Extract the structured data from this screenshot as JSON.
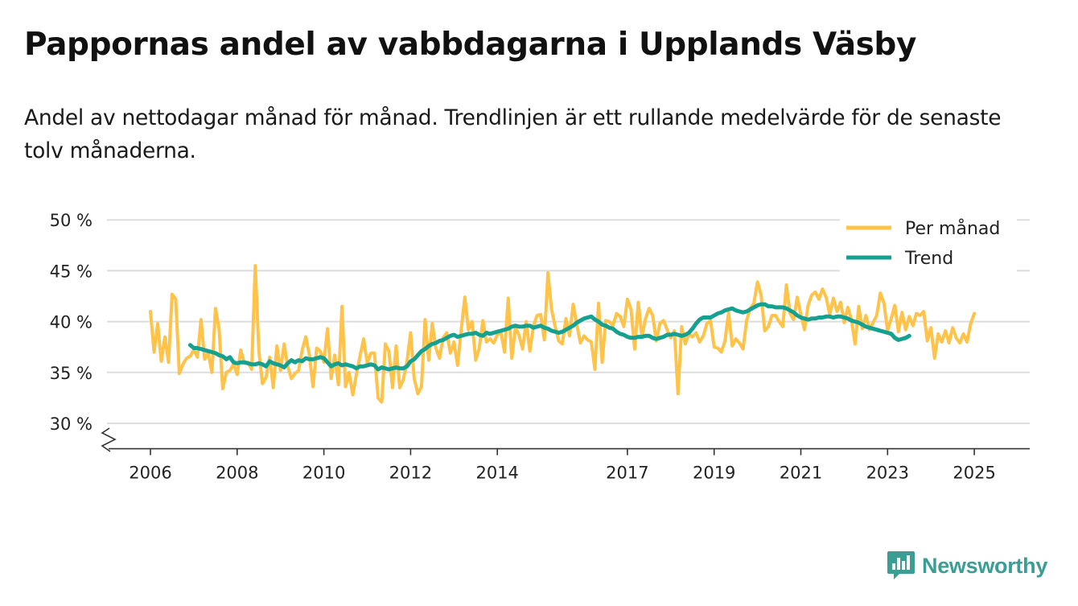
{
  "title": "Pappornas andel av vabbdagarna i Upplands Väsby",
  "subtitle": "Andel av nettodagar månad för månad. Trendlinjen är ett rullande medelvärde för de senaste tolv månaderna.",
  "brand": {
    "name": "Newsworthy",
    "icon": "bar-chart-speech-bubble-icon"
  },
  "colors": {
    "monthly": "#FFC34A",
    "trend": "#16A090",
    "grid": "#dddddd",
    "axis": "#333333",
    "brand": "#3a9e95"
  },
  "chart_data": {
    "type": "line",
    "title": "Pappornas andel av vabbdagarna i Upplands Väsby",
    "xlabel": "",
    "ylabel": "",
    "xlim": [
      2006.0,
      2026.5
    ],
    "ylim": [
      27.5,
      50
    ],
    "y_ticks": [
      30,
      35,
      40,
      45,
      50
    ],
    "y_tick_labels": [
      "30 %",
      "35 %",
      "40 %",
      "45 %",
      "50 %"
    ],
    "x_ticks": [
      2006,
      2008,
      2010,
      2012,
      2014,
      2017,
      2019,
      2021,
      2023,
      2025
    ],
    "x_tick_labels": [
      "2006",
      "2008",
      "2010",
      "2012",
      "2014",
      "2017",
      "2019",
      "2021",
      "2023",
      "2025"
    ],
    "grid": true,
    "axis_break": true,
    "legend_position": "top-right",
    "series": [
      {
        "name": "Per månad",
        "start": "2006-01",
        "values": [
          41.0,
          37.0,
          39.8,
          36.1,
          38.5,
          36.0,
          42.7,
          42.2,
          34.9,
          35.8,
          36.4,
          36.6,
          37.2,
          36.5,
          40.2,
          36.3,
          36.9,
          35.0,
          41.3,
          39.3,
          33.4,
          35.0,
          35.2,
          35.8,
          34.8,
          37.2,
          35.9,
          36.0,
          35.3,
          45.5,
          37.1,
          33.9,
          34.5,
          36.5,
          33.5,
          37.6,
          35.2,
          37.8,
          35.6,
          34.4,
          34.9,
          35.2,
          37.2,
          38.5,
          36.7,
          33.6,
          37.4,
          37.1,
          36.0,
          39.3,
          34.4,
          36.7,
          33.8,
          41.5,
          33.6,
          35.0,
          32.8,
          34.8,
          36.6,
          38.3,
          35.9,
          36.9,
          36.9,
          32.5,
          32.1,
          37.8,
          37.1,
          33.5,
          37.6,
          33.5,
          34.3,
          36.1,
          38.9,
          34.4,
          32.9,
          33.6,
          40.2,
          36.2,
          39.8,
          37.4,
          36.4,
          38.4,
          38.9,
          36.9,
          38.0,
          35.7,
          39.2,
          42.4,
          39.2,
          40.0,
          36.2,
          37.4,
          40.1,
          38.0,
          38.3,
          37.9,
          38.7,
          38.9,
          37.0,
          42.3,
          36.4,
          39.4,
          38.7,
          37.3,
          40.0,
          37.1,
          39.6,
          40.6,
          40.7,
          38.2,
          44.8,
          41.2,
          39.5,
          38.1,
          37.8,
          40.3,
          38.6,
          41.7,
          39.7,
          37.9,
          38.6,
          38.2,
          38.0,
          35.3,
          41.8,
          36.0,
          40.1,
          40.0,
          39.6,
          40.8,
          40.5,
          39.5,
          42.2,
          41.2,
          37.3,
          41.9,
          38.5,
          40.3,
          41.3,
          40.6,
          38.1,
          39.8,
          40.1,
          39.2,
          38.4,
          39.1,
          32.9,
          39.5,
          37.8,
          38.8,
          38.5,
          38.9,
          38.0,
          38.6,
          39.8,
          40.1,
          37.5,
          37.4,
          37.0,
          38.1,
          40.9,
          37.6,
          38.3,
          37.9,
          37.3,
          40.1,
          41.3,
          41.8,
          43.9,
          42.6,
          39.1,
          39.5,
          40.6,
          40.6,
          40.0,
          39.5,
          43.6,
          40.8,
          40.2,
          42.4,
          40.7,
          39.2,
          41.6,
          42.6,
          42.9,
          42.2,
          43.2,
          42.4,
          40.7,
          42.3,
          41.0,
          41.9,
          39.9,
          41.4,
          40.2,
          37.8,
          41.5,
          39.3,
          40.6,
          39.2,
          39.9,
          40.6,
          42.8,
          41.8,
          39.1,
          40.3,
          41.6,
          39.0,
          40.9,
          39.2,
          40.5,
          39.6,
          40.8,
          40.6,
          41.0,
          38.1,
          39.4,
          36.4,
          38.8,
          38.0,
          39.1,
          37.9,
          39.4,
          38.4,
          37.9,
          38.8,
          38.0,
          39.8,
          40.8
        ]
      },
      {
        "name": "Trend",
        "start": "2006-12",
        "values": [
          37.7,
          37.4,
          37.4,
          37.3,
          37.2,
          37.1,
          37.0,
          36.9,
          36.7,
          36.6,
          36.3,
          36.5,
          36.0,
          35.9,
          36.0,
          36.0,
          35.9,
          35.8,
          35.8,
          35.9,
          35.8,
          35.6,
          36.1,
          35.9,
          35.8,
          35.7,
          35.5,
          35.9,
          36.2,
          36.0,
          36.2,
          36.1,
          36.4,
          36.3,
          36.3,
          36.4,
          36.5,
          36.4,
          36.0,
          35.6,
          35.8,
          35.9,
          35.7,
          35.8,
          35.7,
          35.6,
          35.4,
          35.6,
          35.6,
          35.7,
          35.8,
          35.7,
          35.3,
          35.5,
          35.4,
          35.3,
          35.4,
          35.5,
          35.4,
          35.4,
          35.6,
          36.1,
          36.3,
          36.7,
          37.1,
          37.3,
          37.6,
          37.8,
          37.9,
          38.1,
          38.2,
          38.4,
          38.6,
          38.7,
          38.5,
          38.6,
          38.7,
          38.8,
          38.8,
          38.9,
          38.7,
          38.6,
          38.9,
          38.8,
          38.9,
          39.0,
          39.1,
          39.2,
          39.3,
          39.5,
          39.6,
          39.5,
          39.5,
          39.6,
          39.6,
          39.4,
          39.5,
          39.6,
          39.4,
          39.3,
          39.1,
          39.0,
          38.9,
          39.0,
          39.2,
          39.4,
          39.6,
          39.9,
          40.1,
          40.3,
          40.4,
          40.5,
          40.2,
          40.0,
          39.7,
          39.6,
          39.4,
          39.3,
          39.0,
          38.8,
          38.7,
          38.5,
          38.4,
          38.4,
          38.5,
          38.5,
          38.6,
          38.6,
          38.4,
          38.3,
          38.4,
          38.5,
          38.7,
          38.7,
          38.8,
          38.7,
          38.6,
          38.7,
          38.9,
          39.3,
          39.8,
          40.2,
          40.4,
          40.4,
          40.4,
          40.6,
          40.8,
          40.9,
          41.1,
          41.2,
          41.3,
          41.1,
          41.0,
          40.9,
          41.0,
          41.2,
          41.4,
          41.6,
          41.7,
          41.7,
          41.5,
          41.5,
          41.4,
          41.4,
          41.4,
          41.3,
          41.1,
          40.9,
          40.6,
          40.4,
          40.3,
          40.2,
          40.3,
          40.3,
          40.4,
          40.4,
          40.5,
          40.5,
          40.4,
          40.5,
          40.5,
          40.4,
          40.3,
          40.1,
          40.0,
          39.9,
          39.7,
          39.5,
          39.4,
          39.3,
          39.2,
          39.1,
          39.0,
          38.9,
          38.8,
          38.4,
          38.2,
          38.3,
          38.4,
          38.6
        ]
      }
    ]
  }
}
